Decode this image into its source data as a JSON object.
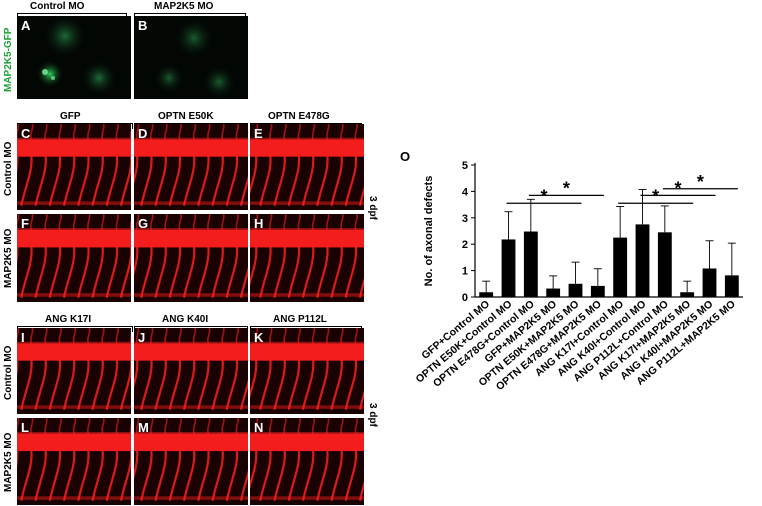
{
  "top_section": {
    "columns": [
      "Control MO",
      "MAP2K5 MO"
    ],
    "row_label": "MAP2K5-GFP",
    "panels": [
      {
        "letter": "A"
      },
      {
        "letter": "B"
      }
    ]
  },
  "optn_section": {
    "columns": [
      "GFP",
      "OPTN E50K",
      "OPTN E478G"
    ],
    "rows": [
      "Control MO",
      "MAP2K5 MO"
    ],
    "side_label": "3 dpf",
    "panels": [
      {
        "letter": "C"
      },
      {
        "letter": "D"
      },
      {
        "letter": "E"
      },
      {
        "letter": "F"
      },
      {
        "letter": "G"
      },
      {
        "letter": "H"
      }
    ]
  },
  "ang_section": {
    "columns": [
      "ANG K17I",
      "ANG K40I",
      "ANG P112L"
    ],
    "rows": [
      "Control MO",
      "MAP2K5 MO"
    ],
    "side_label": "3 dpf",
    "panels": [
      {
        "letter": "I"
      },
      {
        "letter": "J"
      },
      {
        "letter": "K"
      },
      {
        "letter": "L"
      },
      {
        "letter": "M"
      },
      {
        "letter": "N"
      }
    ]
  },
  "colors": {
    "vessel_red": "#ff1f1f",
    "panel_bg_red": "#1a0203",
    "gfp_green": "#2fd35a",
    "label_green": "#1fa33a",
    "bar": "#000000"
  },
  "chart_data": {
    "panel_letter": "O",
    "type": "bar",
    "ylabel": "No. of axonal defects",
    "ylim": [
      0,
      5
    ],
    "yticks": [
      0,
      1,
      2,
      3,
      4,
      5
    ],
    "categories": [
      "GFP+Control MO",
      "OPTN E50K+Control MO",
      "OPTN E478G+Control MO",
      "GFP+MAP2K5 MO",
      "OPTN E50K+MAP2K5 MO",
      "OPTN E478G+MAP2K5 MO",
      "ANG K17I+Control MO",
      "ANG K40I+Control MO",
      "ANG P112L+Control MO",
      "ANG K17I+MAP2K5 MO",
      "ANG K40I+MAP2K5 MO",
      "ANG P112L+MAP2K5 MO"
    ],
    "values": [
      0.18,
      2.18,
      2.48,
      0.32,
      0.5,
      0.42,
      2.25,
      2.75,
      2.45,
      0.18,
      1.08,
      0.82
    ],
    "errors": [
      0.42,
      1.05,
      1.22,
      0.48,
      0.82,
      0.65,
      1.18,
      1.32,
      1.0,
      0.42,
      1.05,
      1.22
    ],
    "significance": [
      {
        "from": 1,
        "to": 4,
        "label": "*"
      },
      {
        "from": 2,
        "to": 5,
        "label": "*"
      },
      {
        "from": 6,
        "to": 9,
        "label": "*"
      },
      {
        "from": 7,
        "to": 10,
        "label": "*"
      },
      {
        "from": 8,
        "to": 11,
        "label": "*"
      }
    ]
  }
}
